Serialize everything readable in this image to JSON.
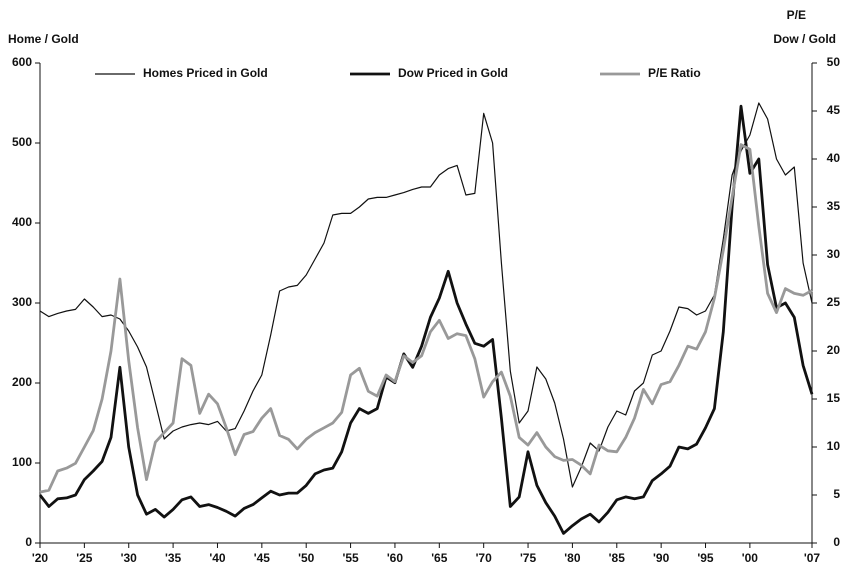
{
  "chart_data": {
    "type": "line",
    "ylabel": "Home / Gold",
    "y2label": [
      "P/E",
      "Dow / Gold"
    ],
    "x": [
      1920,
      1921,
      1922,
      1923,
      1924,
      1925,
      1926,
      1927,
      1928,
      1929,
      1930,
      1931,
      1932,
      1933,
      1934,
      1935,
      1936,
      1937,
      1938,
      1939,
      1940,
      1941,
      1942,
      1943,
      1944,
      1945,
      1946,
      1947,
      1948,
      1949,
      1950,
      1951,
      1952,
      1953,
      1954,
      1955,
      1956,
      1957,
      1958,
      1959,
      1960,
      1961,
      1962,
      1963,
      1964,
      1965,
      1966,
      1967,
      1968,
      1969,
      1970,
      1971,
      1972,
      1973,
      1974,
      1975,
      1976,
      1977,
      1978,
      1979,
      1980,
      1981,
      1982,
      1983,
      1984,
      1985,
      1986,
      1987,
      1988,
      1989,
      1990,
      1991,
      1992,
      1993,
      1994,
      1995,
      1996,
      1997,
      1998,
      1999,
      2000,
      2001,
      2002,
      2003,
      2004,
      2005,
      2006,
      2007
    ],
    "xlim": [
      1920,
      2007
    ],
    "xticks": [
      {
        "value": 1920,
        "label": "'20"
      },
      {
        "value": 1925,
        "label": "'25"
      },
      {
        "value": 1930,
        "label": "'30"
      },
      {
        "value": 1935,
        "label": "'35"
      },
      {
        "value": 1940,
        "label": "'40"
      },
      {
        "value": 1945,
        "label": "'45"
      },
      {
        "value": 1950,
        "label": "'50"
      },
      {
        "value": 1955,
        "label": "'55"
      },
      {
        "value": 1960,
        "label": "'60"
      },
      {
        "value": 1965,
        "label": "'65"
      },
      {
        "value": 1970,
        "label": "'70"
      },
      {
        "value": 1975,
        "label": "'75"
      },
      {
        "value": 1980,
        "label": "'80"
      },
      {
        "value": 1985,
        "label": "'85"
      },
      {
        "value": 1990,
        "label": "'90"
      },
      {
        "value": 1995,
        "label": "'95"
      },
      {
        "value": 2000,
        "label": "'00"
      },
      {
        "value": 2007,
        "label": "'07"
      }
    ],
    "ylim": [
      0,
      600
    ],
    "yticks": [
      0,
      100,
      200,
      300,
      400,
      500,
      600
    ],
    "y2lim": [
      0,
      50
    ],
    "y2ticks": [
      0,
      5,
      10,
      15,
      20,
      25,
      30,
      35,
      40,
      45,
      50
    ],
    "series": [
      {
        "name": "Homes Priced in Gold",
        "color": "#111111",
        "line_width": 1.2,
        "values": [
          290,
          283,
          287,
          290,
          292,
          305,
          295,
          283,
          285,
          280,
          265,
          245,
          220,
          175,
          130,
          140,
          145,
          148,
          150,
          148,
          152,
          140,
          143,
          165,
          190,
          210,
          260,
          315,
          320,
          322,
          335,
          355,
          375,
          410,
          412,
          412,
          420,
          430,
          432,
          432,
          435,
          438,
          442,
          445,
          445,
          460,
          468,
          472,
          435,
          437,
          537,
          500,
          350,
          215,
          150,
          165,
          220,
          205,
          175,
          130,
          70,
          95,
          125,
          115,
          145,
          165,
          160,
          190,
          200,
          235,
          240,
          265,
          295,
          293,
          285,
          290,
          310,
          380,
          460,
          490,
          510,
          550,
          530,
          480,
          460,
          470,
          350,
          300
        ]
      },
      {
        "name": "Dow Priced in Gold",
        "color": "#111111",
        "line_width": 2.8,
        "axis": "y2",
        "values": [
          5,
          3.8,
          4.6,
          4.7,
          5,
          6.6,
          7.5,
          8.5,
          11,
          18.3,
          10,
          5,
          3,
          3.5,
          2.7,
          3.5,
          4.5,
          4.8,
          3.8,
          4,
          3.7,
          3.3,
          2.8,
          3.6,
          4,
          4.7,
          5.4,
          5,
          5.2,
          5.2,
          6,
          7.2,
          7.6,
          7.8,
          9.5,
          12.5,
          14,
          13.5,
          14,
          17.3,
          16.7,
          19.7,
          18.3,
          20.5,
          23.5,
          25.5,
          28.3,
          25,
          22.8,
          20.8,
          20.5,
          21.2,
          13,
          3.8,
          4.8,
          9.5,
          6,
          4.2,
          2.8,
          1,
          1.8,
          2.5,
          3,
          2.2,
          3.2,
          4.5,
          4.8,
          4.6,
          4.8,
          6.5,
          7.2,
          8,
          10,
          9.8,
          10.3,
          12,
          14,
          22,
          35,
          45.5,
          38.5,
          40,
          29,
          24.5,
          25,
          23.5,
          18.5,
          15.5
        ]
      },
      {
        "name": "P/E Ratio",
        "color": "#999999",
        "line_width": 2.8,
        "axis": "y2",
        "values": [
          5.3,
          5.5,
          7.5,
          7.8,
          8.3,
          10,
          11.7,
          15,
          20,
          27.5,
          19,
          12,
          6.6,
          10.5,
          11.5,
          12.5,
          19.2,
          18.5,
          13.5,
          15.5,
          14.5,
          12,
          9.2,
          11.3,
          11.6,
          13,
          14,
          11.2,
          10.8,
          9.8,
          10.8,
          11.5,
          12,
          12.5,
          13.6,
          17.5,
          18.2,
          15.8,
          15.3,
          17.5,
          16.8,
          19.5,
          18.8,
          19.5,
          22,
          23.2,
          21.3,
          21.8,
          21.6,
          19.2,
          15.2,
          16.8,
          17.8,
          15.3,
          11,
          10.2,
          11.5,
          10,
          9,
          8.6,
          8.7,
          8.1,
          7.2,
          10.2,
          9.6,
          9.5,
          11,
          13,
          16,
          14.5,
          16.5,
          16.8,
          18.5,
          20.5,
          20.2,
          22,
          25.5,
          30.5,
          36,
          41.5,
          41,
          33,
          26,
          24,
          26.5,
          26,
          25.8,
          26.3
        ]
      }
    ]
  }
}
